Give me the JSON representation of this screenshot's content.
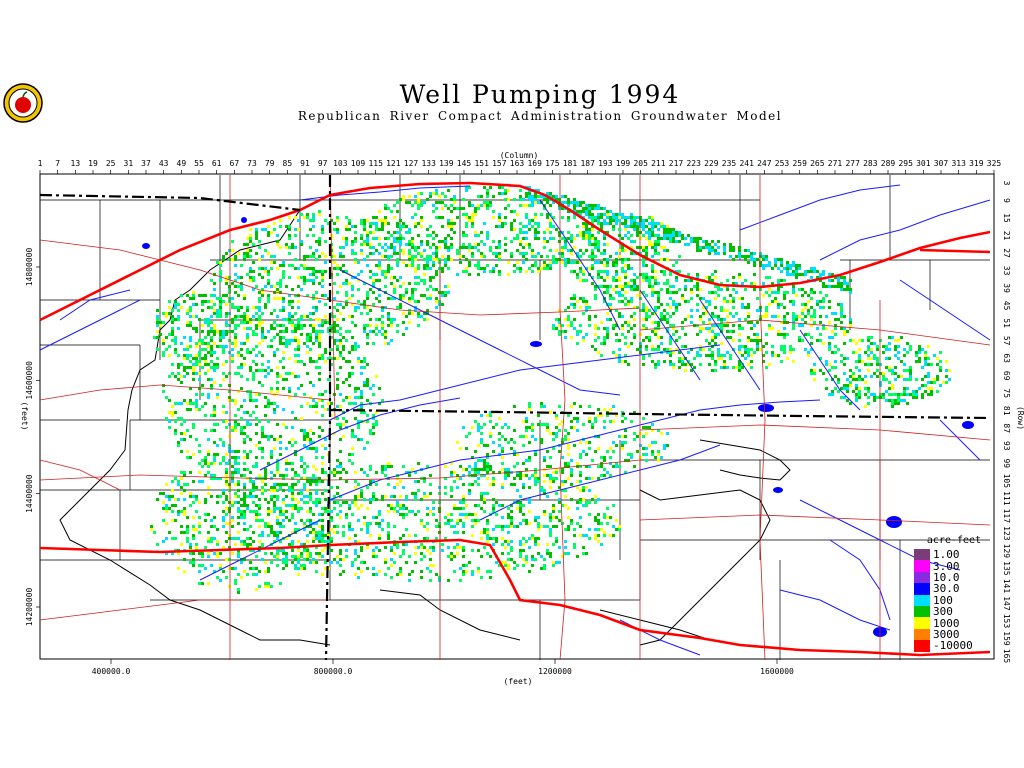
{
  "title": "Well Pumping 1994",
  "subtitle": "Republican River Compact Administration Groundwater Model",
  "axes": {
    "column_label": "(Column)",
    "row_label": "(Row)",
    "x_feet_label": "(feet)",
    "y_feet_label": "(feet)",
    "column_ticks": [
      "1",
      "7",
      "13",
      "19",
      "25",
      "31",
      "37",
      "43",
      "49",
      "55",
      "61",
      "67",
      "73",
      "79",
      "85",
      "91",
      "97",
      "103",
      "109",
      "115",
      "121",
      "127",
      "133",
      "139",
      "145",
      "151",
      "157",
      "163",
      "169",
      "175",
      "181",
      "187",
      "193",
      "199",
      "205",
      "211",
      "217",
      "223",
      "229",
      "235",
      "241",
      "247",
      "253",
      "259",
      "265",
      "271",
      "277",
      "283",
      "289",
      "295",
      "301",
      "307",
      "313",
      "319",
      "325"
    ],
    "row_ticks": [
      "3",
      "9",
      "15",
      "21",
      "27",
      "33",
      "39",
      "45",
      "51",
      "57",
      "63",
      "69",
      "75",
      "81",
      "87",
      "93",
      "99",
      "105",
      "111",
      "117",
      "123",
      "129",
      "135",
      "141",
      "147",
      "153",
      "159",
      "165"
    ],
    "x_feet_ticks": [
      {
        "label": "400000.0",
        "value": 400000
      },
      {
        "label": "800000.0",
        "value": 800000
      },
      {
        "label": "1200000",
        "value": 1200000
      },
      {
        "label": "1600000",
        "value": 1600000
      }
    ],
    "y_feet_ticks": [
      {
        "label": "14800000",
        "value": 14800000
      },
      {
        "label": "14600000",
        "value": 14600000
      },
      {
        "label": "14400000",
        "value": 14400000
      },
      {
        "label": "14200000",
        "value": 14200000
      }
    ]
  },
  "legend": {
    "title": "acre-feet",
    "entries": [
      {
        "label": "1.00",
        "color": "#7a3d7a"
      },
      {
        "label": "3.00",
        "color": "#ff00ff"
      },
      {
        "label": "10.0",
        "color": "#8a2be2"
      },
      {
        "label": "30.0",
        "color": "#0000ff"
      },
      {
        "label": "100",
        "color": "#00ddff"
      },
      {
        "label": "300",
        "color": "#00c000"
      },
      {
        "label": "1000",
        "color": "#ffff00"
      },
      {
        "label": "3000",
        "color": "#ff8000"
      },
      {
        "label": "-10000",
        "color": "#ff0000"
      }
    ]
  },
  "colors": {
    "highway": "#ff0000",
    "roads": "#d02020",
    "rivers": "#1a1aff",
    "state_line": "#000000",
    "pumping_low": "#00ff66",
    "pumping_mid": "#00c000",
    "pumping_high": "#ffff00",
    "pumping_cyan": "#00ddff"
  }
}
